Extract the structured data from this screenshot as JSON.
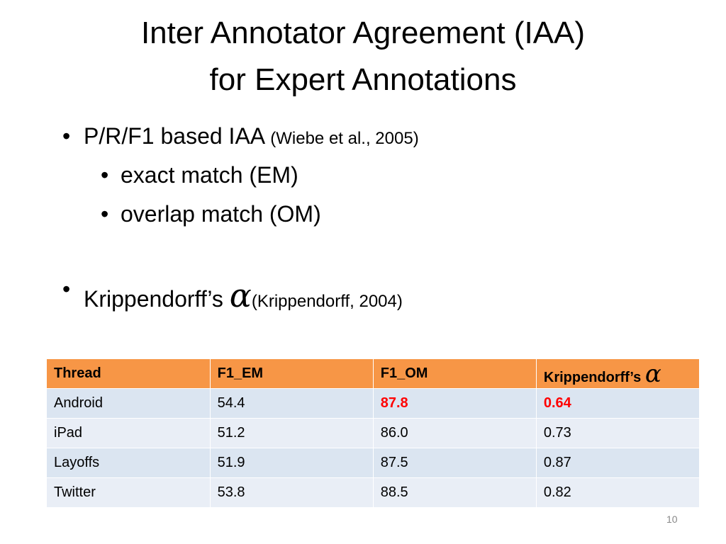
{
  "title": {
    "lines": [
      "Inter Annotator Agreement (IAA)",
      "for Expert Annotations"
    ]
  },
  "bullets": [
    {
      "text": "P/R/F1 based IAA",
      "cite": "(Wiebe et al., 2005)",
      "sub": [
        "exact match (EM)",
        "overlap match (OM)"
      ]
    },
    {
      "text": "Krippendorff’s",
      "symbol": "α",
      "cite": "(Krippendorff, 2004)"
    }
  ],
  "table": {
    "header": [
      "Thread",
      "F1_EM",
      "F1_OM",
      "Krippendorff’s"
    ],
    "header_symbol": "α",
    "header_color": "#f79646",
    "row_colors": [
      "#dbe5f1",
      "#e9eef6"
    ],
    "rows": [
      [
        "Android",
        "54.4",
        {
          "text": "87.8",
          "color": "#ff0000",
          "bold": true
        },
        {
          "text": "0.64",
          "color": "#ff0000",
          "bold": true
        }
      ],
      [
        "iPad",
        "51.2",
        "86.0",
        "0.73"
      ],
      [
        "Layoffs",
        "51.9",
        "87.5",
        "0.87"
      ],
      [
        "Twitter",
        "53.8",
        "88.5",
        "0.82"
      ]
    ]
  },
  "page_number": "10"
}
